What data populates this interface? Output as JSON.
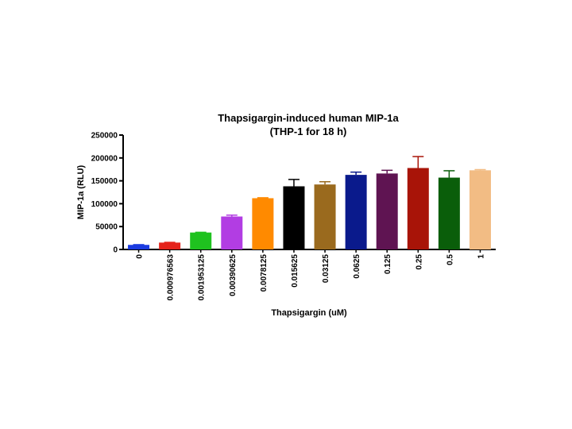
{
  "chart_data": {
    "type": "bar",
    "title": "Thapsigargin-induced human MIP-1a",
    "subtitle": "(THP-1 for 18 h)",
    "xlabel": "Thapsigargin (uM)",
    "ylabel": "MIP-1a (RLU)",
    "ylim": [
      0,
      250000
    ],
    "yticks": [
      0,
      50000,
      100000,
      150000,
      200000,
      250000
    ],
    "categories": [
      "0",
      "0.000976563",
      "0.001953125",
      "0.00390625",
      "0.0078125",
      "0.015625",
      "0.03125",
      "0.0625",
      "0.125",
      "0.25",
      "0.5",
      "1"
    ],
    "values": [
      10000,
      15000,
      37000,
      72000,
      112000,
      138000,
      142000,
      163000,
      166000,
      178000,
      157000,
      173000
    ],
    "errors": [
      500,
      500,
      500,
      3000,
      1000,
      15000,
      6000,
      6000,
      7000,
      25000,
      15000,
      1500
    ],
    "colors": [
      "#1a3be0",
      "#e5231b",
      "#1fc21f",
      "#b23de3",
      "#ff8a00",
      "#000000",
      "#9a6a1e",
      "#0a1a8c",
      "#5f1452",
      "#a81408",
      "#0a5e0a",
      "#f2bc84"
    ],
    "error_colors": [
      "#1a3be0",
      "#e5231b",
      "#1fc21f",
      "#b23de3",
      "#ff8a00",
      "#000000",
      "#9a6a1e",
      "#0a1a8c",
      "#5f1452",
      "#a81408",
      "#0a5e0a",
      "#f2bc84"
    ],
    "grid": false,
    "legend": "none"
  }
}
